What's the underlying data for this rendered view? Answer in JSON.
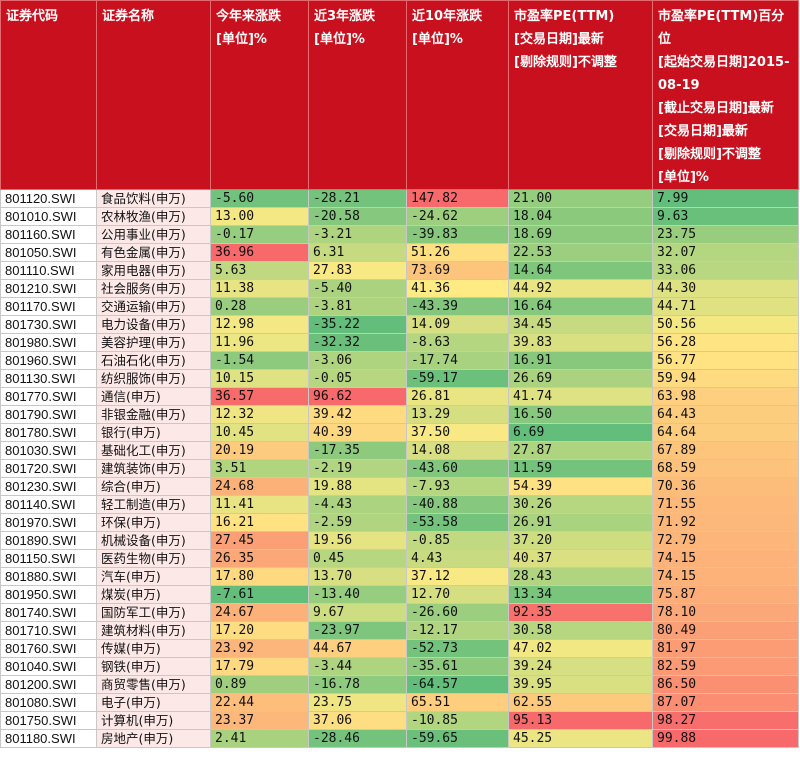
{
  "headers": [
    "证券代码",
    "证券名称",
    "今年来涨跌\n[单位]%",
    "近3年涨跌\n[单位]%",
    "近10年涨跌\n[单位]%",
    "市盈率PE(TTM)\n[交易日期]最新\n[剔除规则]不调整",
    "市盈率PE(TTM)百分位\n[起始交易日期]2015-08-19\n[截止交易日期]最新\n[交易日期]最新\n[剔除规则]不调整\n[单位]%"
  ],
  "colors": {
    "header_bg": "#c8101e",
    "header_text": "#ffffff",
    "name_bg": "#fde8e8",
    "scale_low": "#63be7b",
    "scale_mid": "#ffeb84",
    "scale_high": "#f8696b"
  },
  "rows": [
    {
      "code": "801120.SWI",
      "name": "食品饮料(申万)",
      "ytd": "-5.60",
      "y3": "-28.21",
      "y10": "147.82",
      "pe": "21.00",
      "pct": "7.99"
    },
    {
      "code": "801010.SWI",
      "name": "农林牧渔(申万)",
      "ytd": "13.00",
      "y3": "-20.58",
      "y10": "-24.62",
      "pe": "18.04",
      "pct": "9.63"
    },
    {
      "code": "801160.SWI",
      "name": "公用事业(申万)",
      "ytd": "-0.17",
      "y3": "-3.21",
      "y10": "-39.83",
      "pe": "18.69",
      "pct": "23.75"
    },
    {
      "code": "801050.SWI",
      "name": "有色金属(申万)",
      "ytd": "36.96",
      "y3": "6.31",
      "y10": "51.26",
      "pe": "22.53",
      "pct": "32.07"
    },
    {
      "code": "801110.SWI",
      "name": "家用电器(申万)",
      "ytd": "5.63",
      "y3": "27.83",
      "y10": "73.69",
      "pe": "14.64",
      "pct": "33.06"
    },
    {
      "code": "801210.SWI",
      "name": "社会服务(申万)",
      "ytd": "11.38",
      "y3": "-5.40",
      "y10": "41.36",
      "pe": "44.92",
      "pct": "44.30"
    },
    {
      "code": "801170.SWI",
      "name": "交通运输(申万)",
      "ytd": "0.28",
      "y3": "-3.81",
      "y10": "-43.39",
      "pe": "16.64",
      "pct": "44.71"
    },
    {
      "code": "801730.SWI",
      "name": "电力设备(申万)",
      "ytd": "12.98",
      "y3": "-35.22",
      "y10": "14.09",
      "pe": "34.45",
      "pct": "50.56"
    },
    {
      "code": "801980.SWI",
      "name": "美容护理(申万)",
      "ytd": "11.96",
      "y3": "-32.32",
      "y10": "-8.63",
      "pe": "39.83",
      "pct": "56.28"
    },
    {
      "code": "801960.SWI",
      "name": "石油石化(申万)",
      "ytd": "-1.54",
      "y3": "-3.06",
      "y10": "-17.74",
      "pe": "16.91",
      "pct": "56.77"
    },
    {
      "code": "801130.SWI",
      "name": "纺织服饰(申万)",
      "ytd": "10.15",
      "y3": "-0.05",
      "y10": "-59.17",
      "pe": "26.69",
      "pct": "59.94"
    },
    {
      "code": "801770.SWI",
      "name": "通信(申万)",
      "ytd": "36.57",
      "y3": "96.62",
      "y10": "26.81",
      "pe": "41.74",
      "pct": "63.98"
    },
    {
      "code": "801790.SWI",
      "name": "非银金融(申万)",
      "ytd": "12.32",
      "y3": "39.42",
      "y10": "13.29",
      "pe": "16.50",
      "pct": "64.43"
    },
    {
      "code": "801780.SWI",
      "name": "银行(申万)",
      "ytd": "10.45",
      "y3": "40.39",
      "y10": "37.50",
      "pe": "6.69",
      "pct": "64.64"
    },
    {
      "code": "801030.SWI",
      "name": "基础化工(申万)",
      "ytd": "20.19",
      "y3": "-17.35",
      "y10": "14.08",
      "pe": "27.87",
      "pct": "67.89"
    },
    {
      "code": "801720.SWI",
      "name": "建筑装饰(申万)",
      "ytd": "3.51",
      "y3": "-2.19",
      "y10": "-43.60",
      "pe": "11.59",
      "pct": "68.59"
    },
    {
      "code": "801230.SWI",
      "name": "综合(申万)",
      "ytd": "24.68",
      "y3": "19.88",
      "y10": "-7.93",
      "pe": "54.39",
      "pct": "70.36"
    },
    {
      "code": "801140.SWI",
      "name": "轻工制造(申万)",
      "ytd": "11.41",
      "y3": "-4.43",
      "y10": "-40.88",
      "pe": "30.26",
      "pct": "71.55"
    },
    {
      "code": "801970.SWI",
      "name": "环保(申万)",
      "ytd": "16.21",
      "y3": "-2.59",
      "y10": "-53.58",
      "pe": "26.91",
      "pct": "71.92"
    },
    {
      "code": "801890.SWI",
      "name": "机械设备(申万)",
      "ytd": "27.45",
      "y3": "19.56",
      "y10": "-0.85",
      "pe": "37.20",
      "pct": "72.79"
    },
    {
      "code": "801150.SWI",
      "name": "医药生物(申万)",
      "ytd": "26.35",
      "y3": "0.45",
      "y10": "4.43",
      "pe": "40.37",
      "pct": "74.15"
    },
    {
      "code": "801880.SWI",
      "name": "汽车(申万)",
      "ytd": "17.80",
      "y3": "13.70",
      "y10": "37.12",
      "pe": "28.43",
      "pct": "74.15"
    },
    {
      "code": "801950.SWI",
      "name": "煤炭(申万)",
      "ytd": "-7.61",
      "y3": "-13.40",
      "y10": "12.70",
      "pe": "13.34",
      "pct": "75.87"
    },
    {
      "code": "801740.SWI",
      "name": "国防军工(申万)",
      "ytd": "24.67",
      "y3": "9.67",
      "y10": "-26.60",
      "pe": "92.35",
      "pct": "78.10"
    },
    {
      "code": "801710.SWI",
      "name": "建筑材料(申万)",
      "ytd": "17.20",
      "y3": "-23.97",
      "y10": "-12.17",
      "pe": "30.58",
      "pct": "80.49"
    },
    {
      "code": "801760.SWI",
      "name": "传媒(申万)",
      "ytd": "23.92",
      "y3": "44.67",
      "y10": "-52.73",
      "pe": "47.02",
      "pct": "81.97"
    },
    {
      "code": "801040.SWI",
      "name": "钢铁(申万)",
      "ytd": "17.79",
      "y3": "-3.44",
      "y10": "-35.61",
      "pe": "39.24",
      "pct": "82.59"
    },
    {
      "code": "801200.SWI",
      "name": "商贸零售(申万)",
      "ytd": "0.89",
      "y3": "-16.78",
      "y10": "-64.57",
      "pe": "39.95",
      "pct": "86.50"
    },
    {
      "code": "801080.SWI",
      "name": "电子(申万)",
      "ytd": "22.44",
      "y3": "23.75",
      "y10": "65.51",
      "pe": "62.55",
      "pct": "87.07"
    },
    {
      "code": "801750.SWI",
      "name": "计算机(申万)",
      "ytd": "23.37",
      "y3": "37.06",
      "y10": "-10.85",
      "pe": "95.13",
      "pct": "98.27"
    },
    {
      "code": "801180.SWI",
      "name": "房地产(申万)",
      "ytd": "2.41",
      "y3": "-28.46",
      "y10": "-59.65",
      "pe": "45.25",
      "pct": "99.88"
    }
  ]
}
